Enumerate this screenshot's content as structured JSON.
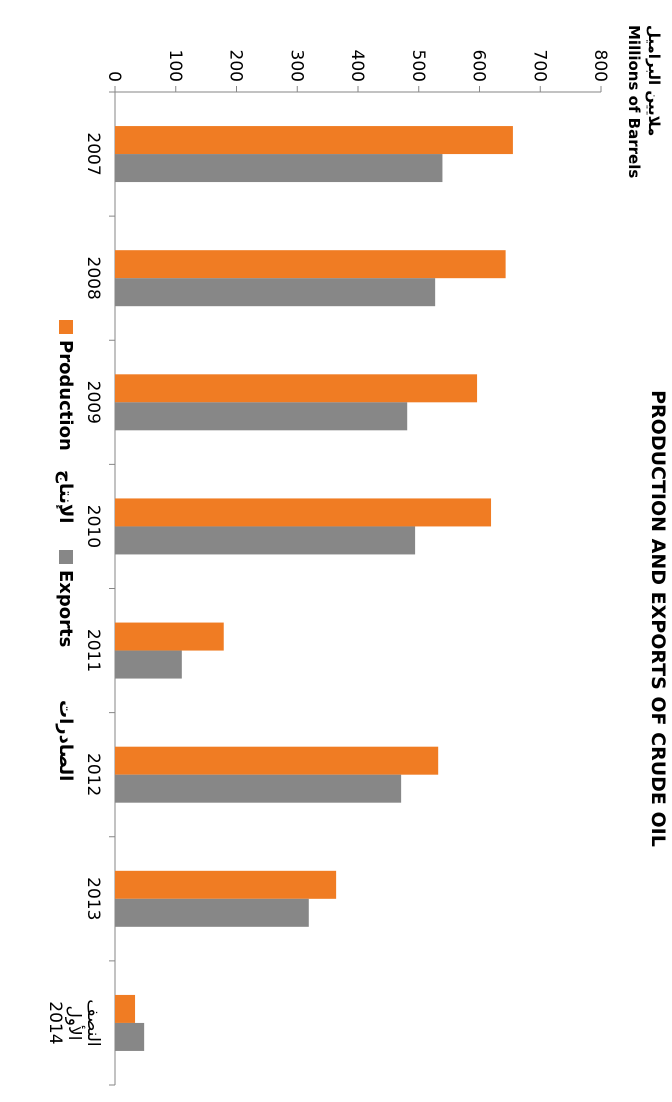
{
  "chart_data": {
    "type": "bar",
    "orientation": "horizontal",
    "title": "PRODUCTION AND EXPORTS OF CRUDE OIL",
    "ylabel_ar": "ملايين البراميل",
    "ylabel_en": "Millions of Barrels",
    "categories": [
      "2007",
      "2008",
      "2009",
      "2010",
      "2011",
      "2012",
      "2013",
      "النصف الأول 2014"
    ],
    "category_lines": [
      [
        "2007"
      ],
      [
        "2008"
      ],
      [
        "2009"
      ],
      [
        "2010"
      ],
      [
        "2011"
      ],
      [
        "2012"
      ],
      [
        "2013"
      ],
      [
        "النصف",
        "الأول",
        "2014"
      ]
    ],
    "series": [
      {
        "name": "Production",
        "name_ar": "الإنتاج",
        "color": "#f07c23",
        "values": [
          655,
          643,
          596,
          619,
          179,
          532,
          364,
          33
        ]
      },
      {
        "name": "Exports",
        "name_ar": "الصادرات",
        "color": "#878787",
        "values": [
          539,
          527,
          481,
          494,
          110,
          471,
          319,
          48
        ]
      }
    ],
    "ylim": [
      0,
      800
    ],
    "yticks": [
      0,
      100,
      200,
      300,
      400,
      500,
      600,
      700,
      800
    ],
    "grid": false,
    "legend_position": "bottom"
  }
}
